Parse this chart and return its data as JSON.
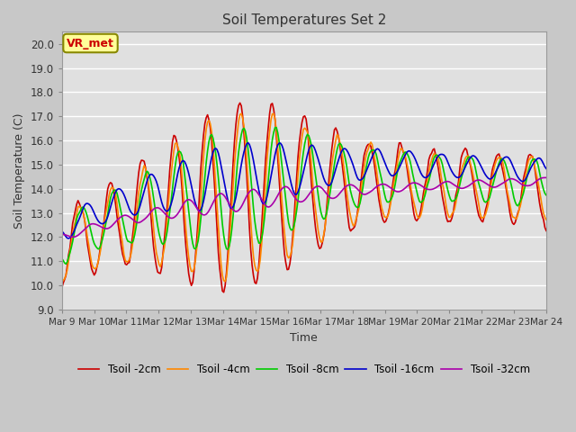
{
  "title": "Soil Temperatures Set 2",
  "xlabel": "Time",
  "ylabel": "Soil Temperature (C)",
  "ylim": [
    9.0,
    20.5
  ],
  "yticks": [
    9.0,
    10.0,
    11.0,
    12.0,
    13.0,
    14.0,
    15.0,
    16.0,
    17.0,
    18.0,
    19.0,
    20.0
  ],
  "xtick_labels": [
    "Mar 9",
    "Mar 10",
    "Mar 11",
    "Mar 12",
    "Mar 13",
    "Mar 14",
    "Mar 15",
    "Mar 16",
    "Mar 17",
    "Mar 18",
    "Mar 19",
    "Mar 20",
    "Mar 21",
    "Mar 22",
    "Mar 23",
    "Mar 24"
  ],
  "legend_labels": [
    "Tsoil -2cm",
    "Tsoil -4cm",
    "Tsoil -8cm",
    "Tsoil -16cm",
    "Tsoil -32cm"
  ],
  "line_colors": [
    "#cc0000",
    "#ff8800",
    "#00cc00",
    "#0000cc",
    "#aa00aa"
  ],
  "line_widths": [
    1.2,
    1.2,
    1.2,
    1.2,
    1.2
  ],
  "plot_bg_color": "#e0e0e0",
  "fig_bg_color": "#c8c8c8",
  "grid_color": "#ffffff",
  "annotation_text": "VR_met",
  "annotation_box_color": "#ffff99",
  "annotation_border_color": "#888800",
  "annotation_text_color": "#cc0000"
}
